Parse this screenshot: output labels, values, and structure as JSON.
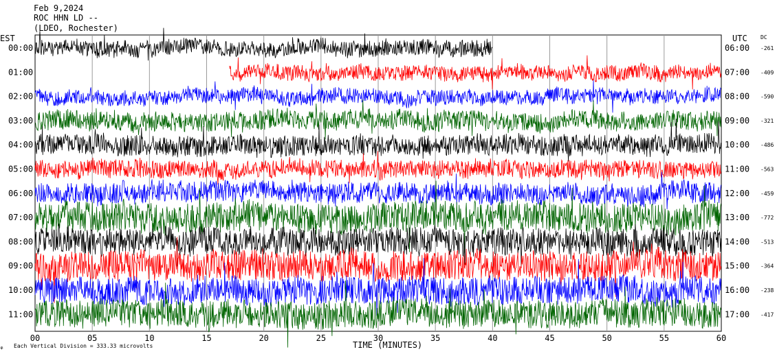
{
  "header": {
    "date": "Feb 9,2024",
    "station": "ROC HHN LD --",
    "location": "(LDEO, Rochester)"
  },
  "left_axis_label": "EST",
  "right_axis_label": "UTC",
  "dc_label": "DC",
  "footer": {
    "scale_note": "Each Vertical Division =  333.33 microvolts",
    "xlabel": "TIME (MINUTES)"
  },
  "colors": {
    "black": "#000000",
    "red": "#ff0000",
    "blue": "#0000ff",
    "green": "#006400"
  },
  "chart_data": {
    "type": "line",
    "xlabel": "TIME (MINUTES)",
    "xlim": [
      0,
      60
    ],
    "x_ticks": [
      "00",
      "05",
      "10",
      "15",
      "20",
      "25",
      "30",
      "35",
      "40",
      "45",
      "50",
      "55",
      "60"
    ],
    "trace_color_cycle": [
      "black",
      "red",
      "blue",
      "green"
    ],
    "rows": [
      {
        "est": "00:00",
        "utc": "06:00",
        "dc": "-261",
        "color": "black",
        "amp": 12,
        "start": 0,
        "end": 40
      },
      {
        "est": "01:00",
        "utc": "07:00",
        "dc": "-409",
        "color": "red",
        "amp": 11,
        "start": 17,
        "end": 60
      },
      {
        "est": "02:00",
        "utc": "08:00",
        "dc": "-590",
        "color": "blue",
        "amp": 11,
        "start": 0,
        "end": 60
      },
      {
        "est": "03:00",
        "utc": "09:00",
        "dc": "-321",
        "color": "green",
        "amp": 14,
        "start": 0,
        "end": 60
      },
      {
        "est": "04:00",
        "utc": "10:00",
        "dc": "-486",
        "color": "black",
        "amp": 15,
        "start": 0,
        "end": 60
      },
      {
        "est": "05:00",
        "utc": "11:00",
        "dc": "-563",
        "color": "red",
        "amp": 13,
        "start": 0,
        "end": 60
      },
      {
        "est": "06:00",
        "utc": "12:00",
        "dc": "-459",
        "color": "blue",
        "amp": 15,
        "start": 0,
        "end": 60
      },
      {
        "est": "07:00",
        "utc": "13:00",
        "dc": "-772",
        "color": "green",
        "amp": 22,
        "start": 0,
        "end": 60
      },
      {
        "est": "08:00",
        "utc": "14:00",
        "dc": "-513",
        "color": "black",
        "amp": 20,
        "start": 0,
        "end": 60
      },
      {
        "est": "09:00",
        "utc": "15:00",
        "dc": "-364",
        "color": "red",
        "amp": 22,
        "start": 0,
        "end": 60
      },
      {
        "est": "10:00",
        "utc": "16:00",
        "dc": "-238",
        "color": "blue",
        "amp": 20,
        "start": 0,
        "end": 60
      },
      {
        "est": "11:00",
        "utc": "17:00",
        "dc": "-417",
        "color": "green",
        "amp": 20,
        "start": 0,
        "end": 60
      }
    ]
  }
}
